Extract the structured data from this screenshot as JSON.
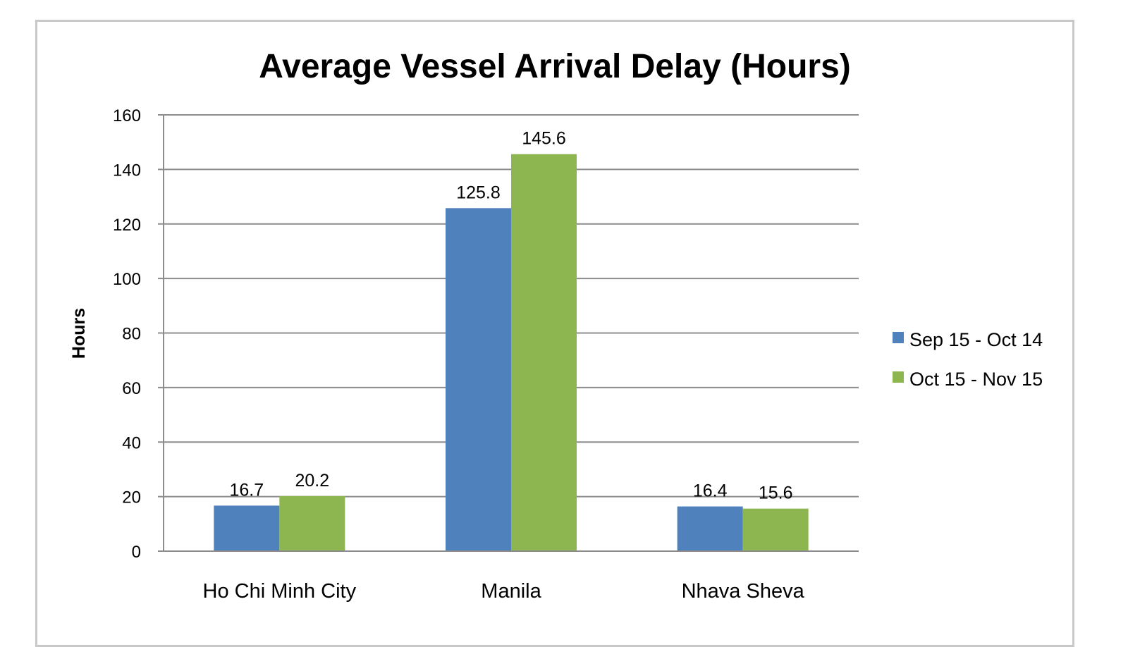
{
  "chart_data": {
    "type": "bar",
    "title": "Average Vessel Arrival Delay (Hours)",
    "xlabel": "",
    "ylabel": "Hours",
    "ylim": [
      0,
      160
    ],
    "yticks": [
      0,
      20,
      40,
      60,
      80,
      100,
      120,
      140,
      160
    ],
    "categories": [
      "Ho Chi Minh City",
      "Manila",
      "Nhava Sheva"
    ],
    "series": [
      {
        "name": "Sep 15 - Oct 14",
        "values": [
          16.7,
          125.8,
          16.4
        ],
        "color": "#4f81bd"
      },
      {
        "name": "Oct 15 - Nov 15",
        "values": [
          20.2,
          145.6,
          15.6
        ],
        "color": "#8db650"
      }
    ],
    "data_labels": true,
    "grid": true,
    "legend_position": "right"
  }
}
